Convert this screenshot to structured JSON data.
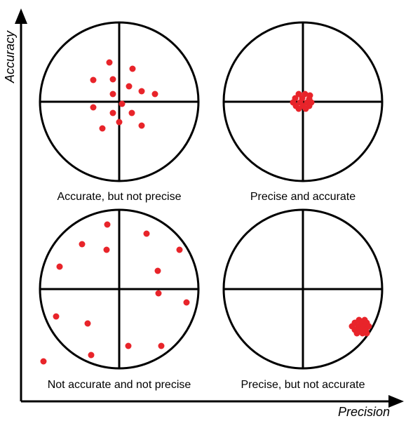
{
  "axes": {
    "y_label": "Accuracy",
    "x_label": "Precision"
  },
  "panels": [
    {
      "id": "accurate-not-precise",
      "caption": "Accurate, but not precise"
    },
    {
      "id": "precise-and-accurate",
      "caption": "Precise and accurate"
    },
    {
      "id": "not-accurate-not-precise",
      "caption": "Not accurate and not precise"
    },
    {
      "id": "precise-not-accurate",
      "caption": "Precise, but not accurate"
    }
  ],
  "colors": {
    "dot": "#e8242a",
    "line": "#000000"
  }
}
